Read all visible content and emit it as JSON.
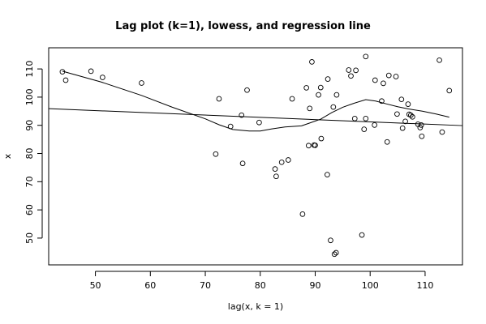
{
  "chart_data": {
    "type": "scatter",
    "title": "Lag plot (k=1), lowess, and regression line",
    "xlabel": "lag(x, k = 1)",
    "ylabel": "x",
    "xlim": [
      41.5,
      116.8
    ],
    "ylim": [
      40.5,
      117.5
    ],
    "xticks": [
      50,
      60,
      70,
      80,
      90,
      100,
      110
    ],
    "yticks": [
      50,
      60,
      70,
      80,
      90,
      100,
      110
    ],
    "grid": false,
    "points": [
      {
        "x": 44,
        "y": 109
      },
      {
        "x": 44.6,
        "y": 106
      },
      {
        "x": 49.2,
        "y": 109.2
      },
      {
        "x": 51.3,
        "y": 107
      },
      {
        "x": 58.4,
        "y": 105
      },
      {
        "x": 71.9,
        "y": 79.8
      },
      {
        "x": 72.5,
        "y": 99.4
      },
      {
        "x": 74.6,
        "y": 89.6
      },
      {
        "x": 76.6,
        "y": 93.6
      },
      {
        "x": 76.8,
        "y": 76.5
      },
      {
        "x": 77.6,
        "y": 102.5
      },
      {
        "x": 79.8,
        "y": 91
      },
      {
        "x": 82.7,
        "y": 74.5
      },
      {
        "x": 82.9,
        "y": 71.9
      },
      {
        "x": 83.9,
        "y": 76.9
      },
      {
        "x": 85.1,
        "y": 77.7
      },
      {
        "x": 85.8,
        "y": 99.4
      },
      {
        "x": 87.7,
        "y": 58.5
      },
      {
        "x": 88.4,
        "y": 103.3
      },
      {
        "x": 88.8,
        "y": 82.8
      },
      {
        "x": 89,
        "y": 96
      },
      {
        "x": 89.4,
        "y": 112.5
      },
      {
        "x": 89.8,
        "y": 83
      },
      {
        "x": 90,
        "y": 82.9
      },
      {
        "x": 90.6,
        "y": 100.8
      },
      {
        "x": 91,
        "y": 103.4
      },
      {
        "x": 91.1,
        "y": 85.3
      },
      {
        "x": 92.2,
        "y": 72.5
      },
      {
        "x": 92.3,
        "y": 106.4
      },
      {
        "x": 92.8,
        "y": 49.2
      },
      {
        "x": 93.3,
        "y": 96.5
      },
      {
        "x": 93.5,
        "y": 44.3
      },
      {
        "x": 93.8,
        "y": 44.8
      },
      {
        "x": 93.9,
        "y": 100.8
      },
      {
        "x": 96.1,
        "y": 109.6
      },
      {
        "x": 96.5,
        "y": 107.5
      },
      {
        "x": 97.2,
        "y": 92.4
      },
      {
        "x": 97.4,
        "y": 109.5
      },
      {
        "x": 98.5,
        "y": 51.1
      },
      {
        "x": 98.9,
        "y": 88.6
      },
      {
        "x": 99.2,
        "y": 114.4
      },
      {
        "x": 99.2,
        "y": 92.4
      },
      {
        "x": 100.8,
        "y": 90.1
      },
      {
        "x": 100.9,
        "y": 106
      },
      {
        "x": 102.1,
        "y": 98.6
      },
      {
        "x": 102.4,
        "y": 104.9
      },
      {
        "x": 103.1,
        "y": 84.1
      },
      {
        "x": 103.4,
        "y": 107.7
      },
      {
        "x": 104.7,
        "y": 107.3
      },
      {
        "x": 104.9,
        "y": 94
      },
      {
        "x": 105.7,
        "y": 99.2
      },
      {
        "x": 105.9,
        "y": 89
      },
      {
        "x": 106.4,
        "y": 91.4
      },
      {
        "x": 106.9,
        "y": 97.5
      },
      {
        "x": 107.1,
        "y": 93.9
      },
      {
        "x": 107.4,
        "y": 93.6
      },
      {
        "x": 107.7,
        "y": 93
      },
      {
        "x": 108.7,
        "y": 90.4
      },
      {
        "x": 109.1,
        "y": 89.2
      },
      {
        "x": 109.3,
        "y": 90.1
      },
      {
        "x": 109.4,
        "y": 86.1
      },
      {
        "x": 112.6,
        "y": 113.1
      },
      {
        "x": 113.1,
        "y": 87.6
      },
      {
        "x": 114.4,
        "y": 102.3
      }
    ],
    "lowess": [
      [
        44,
        109.2
      ],
      [
        51,
        105.4
      ],
      [
        58.4,
        100.6
      ],
      [
        64,
        96.4
      ],
      [
        70,
        92.3
      ],
      [
        72.5,
        90.2
      ],
      [
        75,
        88.5
      ],
      [
        78,
        88
      ],
      [
        80,
        88
      ],
      [
        82,
        88.7
      ],
      [
        84.5,
        89.4
      ],
      [
        87.5,
        89.8
      ],
      [
        89,
        90.8
      ],
      [
        91,
        92.2
      ],
      [
        93,
        94.5
      ],
      [
        95,
        96.4
      ],
      [
        97,
        97.8
      ],
      [
        99.2,
        99.1
      ],
      [
        101,
        98.6
      ],
      [
        103,
        97.6
      ],
      [
        105,
        96.6
      ],
      [
        107,
        95.8
      ],
      [
        109.5,
        95
      ],
      [
        112,
        94
      ],
      [
        114.4,
        92.9
      ]
    ],
    "regression": {
      "x": [
        41.5,
        116.8
      ],
      "y": [
        95.9,
        89.9
      ]
    }
  }
}
